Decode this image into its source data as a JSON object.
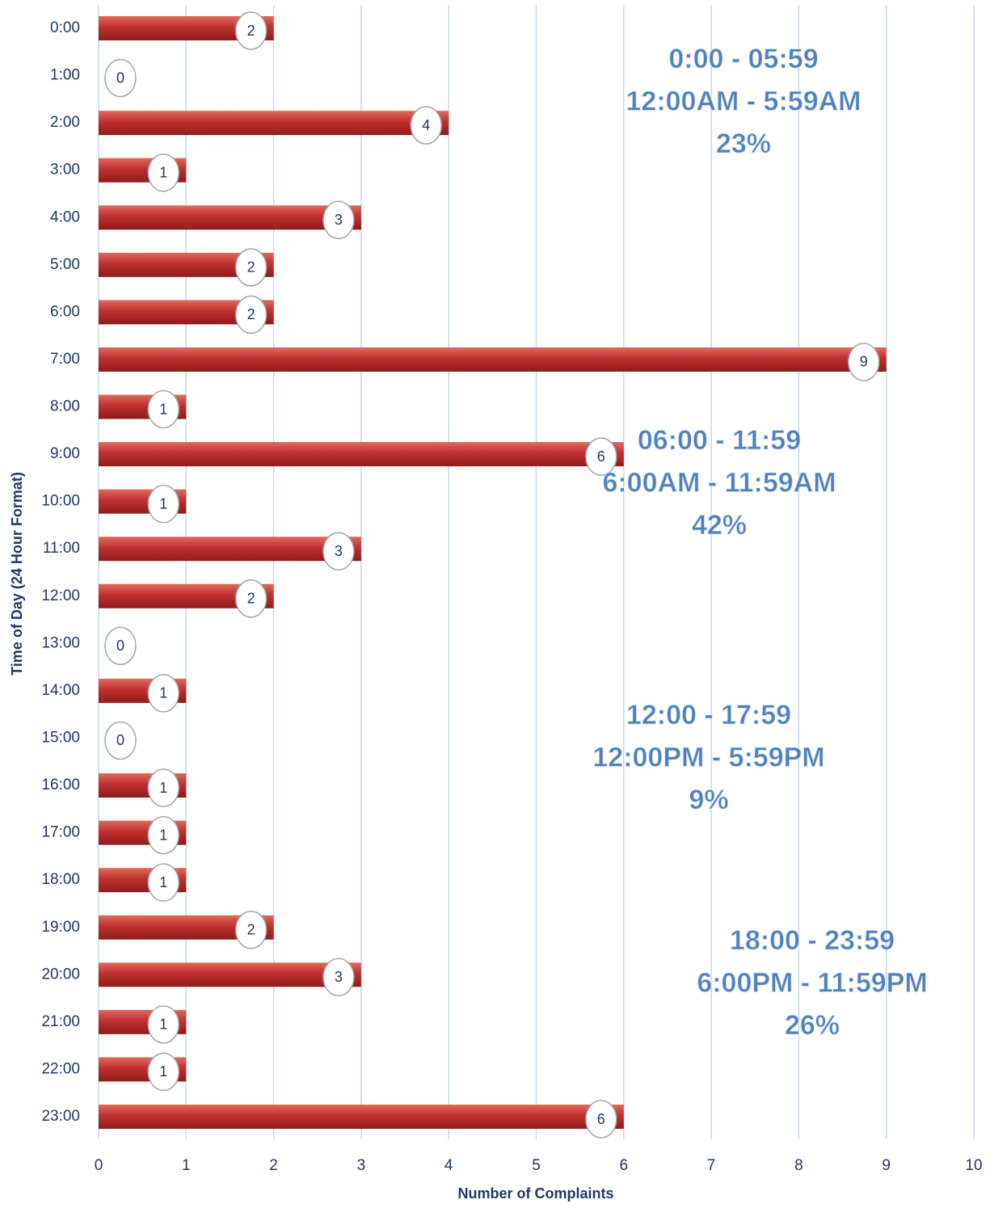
{
  "chart_data": {
    "type": "bar",
    "orientation": "horizontal",
    "categories": [
      "0:00",
      "1:00",
      "2:00",
      "3:00",
      "4:00",
      "5:00",
      "6:00",
      "7:00",
      "8:00",
      "9:00",
      "10:00",
      "11:00",
      "12:00",
      "13:00",
      "14:00",
      "15:00",
      "16:00",
      "17:00",
      "18:00",
      "19:00",
      "20:00",
      "21:00",
      "22:00",
      "23:00"
    ],
    "values": [
      2,
      0,
      4,
      1,
      3,
      2,
      2,
      9,
      1,
      6,
      1,
      3,
      2,
      0,
      1,
      0,
      1,
      1,
      1,
      2,
      3,
      1,
      1,
      6
    ],
    "color": "#c0302e",
    "xlim": [
      0,
      10
    ],
    "xticks": [
      0,
      1,
      2,
      3,
      4,
      5,
      6,
      7,
      8,
      9,
      10
    ],
    "grid": true,
    "xlabel": "Number of Complaints",
    "ylabel": "Time of Day (24 Hour Format)",
    "annotations": [
      [
        "0:00 - 05:59",
        "12:00AM - 5:59AM",
        "23%"
      ],
      [
        "06:00 - 11:59",
        "6:00AM - 11:59AM",
        "42%"
      ],
      [
        "12:00 - 17:59",
        "12:00PM - 5:59PM",
        "9%"
      ],
      [
        "18:00 - 23:59",
        "6:00PM - 11:59PM",
        "26%"
      ]
    ]
  }
}
